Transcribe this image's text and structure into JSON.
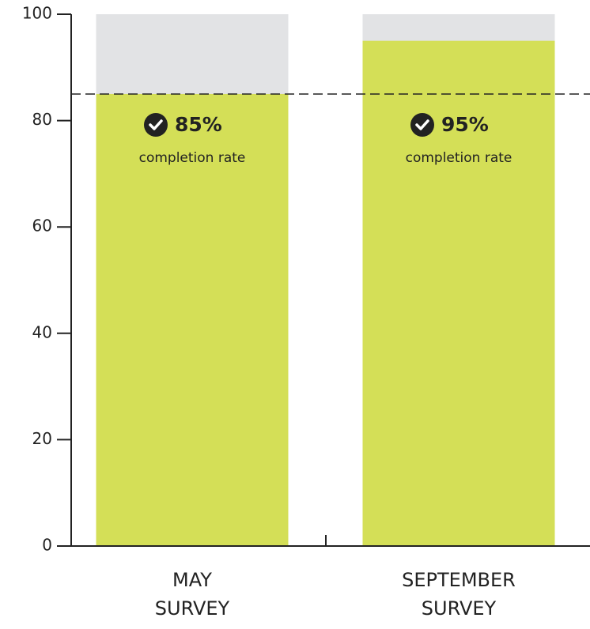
{
  "chart_data": {
    "type": "bar",
    "categories": [
      "MAY SURVEY",
      "SEPTEMBER SURVEY"
    ],
    "values": [
      85,
      95
    ],
    "value_labels": [
      "85%",
      "95%"
    ],
    "bar_notes": [
      "completion rate",
      "completion rate"
    ],
    "color": "#d4df57",
    "track_color": "#e2e3e5",
    "reference_line": 85,
    "ylim": [
      0,
      100
    ],
    "yticks": [
      0,
      20,
      40,
      60,
      80,
      100
    ],
    "grid": false
  }
}
